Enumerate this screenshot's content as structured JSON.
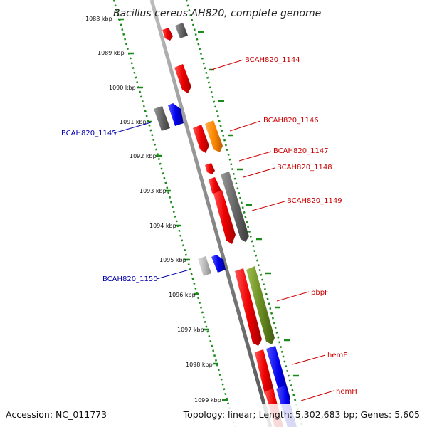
{
  "title": "Bacillus cereus AH820, complete genome",
  "footer": {
    "accession": "Accession: NC_011773",
    "topology": "Topology: linear; Length: 5,302,683 bp; Genes: 5,605"
  },
  "kbp_ticks": [
    "1088 kbp",
    "1089 kbp",
    "1090 kbp",
    "1091 kbp",
    "1092 kbp",
    "1093 kbp",
    "1094 kbp",
    "1095 kbp",
    "1096 kbp",
    "1097 kbp",
    "1098 kbp",
    "1099 kbp"
  ],
  "gene_labels": {
    "forward": [
      "BCAH820_1144",
      "BCAH820_1146",
      "BCAH820_1147",
      "BCAH820_1148",
      "BCAH820_1149",
      "pbpF",
      "hemE",
      "hemH"
    ],
    "reverse": [
      "BCAH820_1145",
      "BCAH820_1150"
    ]
  },
  "colors": {
    "forward_label": "#cc0000",
    "reverse_label": "#0000aa",
    "red": "#ee0000",
    "gray": "#666666",
    "blue": "#0000ee",
    "orange": "#ff8800",
    "olive": "#6b8e23",
    "light_gray": "#bbbbbb",
    "tick_green": "#1a8a1a"
  }
}
